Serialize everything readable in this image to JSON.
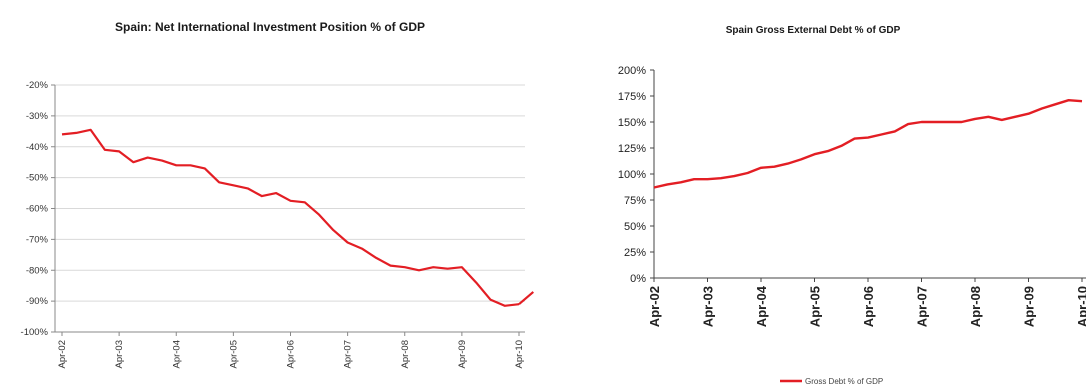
{
  "chart_data": [
    {
      "type": "line",
      "title": "Spain: Net International Investment Position % of GDP",
      "xlabel": "",
      "ylabel": "",
      "ylim": [
        -100,
        -20
      ],
      "yticks": [
        "-20%",
        "-30%",
        "-40%",
        "-50%",
        "-60%",
        "-70%",
        "-80%",
        "-90%",
        "-100%"
      ],
      "xticks": [
        "Apr-02",
        "Apr-03",
        "Apr-04",
        "Apr-05",
        "Apr-06",
        "Apr-07",
        "Apr-08",
        "Apr-09",
        "Apr-10"
      ],
      "grid": true,
      "color": "#e31e24",
      "series": [
        {
          "x": [
            2002.25,
            2002.5,
            2002.75,
            2003.0,
            2003.25,
            2003.5,
            2003.75,
            2004.0,
            2004.25,
            2004.5,
            2004.75,
            2005.0,
            2005.25,
            2005.5,
            2005.75,
            2006.0,
            2006.25,
            2006.5,
            2006.75,
            2007.0,
            2007.25,
            2007.5,
            2007.75,
            2008.0,
            2008.25,
            2008.5,
            2008.75,
            2009.0,
            2009.25,
            2009.5,
            2009.75,
            2010.0,
            2010.25
          ],
          "values": [
            -36,
            -35.5,
            -34.5,
            -41,
            -41.5,
            -45,
            -43.5,
            -44.5,
            -46,
            -46,
            -47,
            -51.5,
            -52.5,
            -53.5,
            -56,
            -55,
            -57.5,
            -58,
            -62,
            -67,
            -71,
            -73,
            -76,
            -78.5,
            -79,
            -80,
            -79,
            -79.5,
            -79,
            -84,
            -89.5,
            -91.5,
            -91
          ]
        },
        {
          "x": [
            2010.25,
            2010.5
          ],
          "values": [
            -91,
            -87
          ]
        }
      ]
    },
    {
      "type": "line",
      "title": "Spain Gross External Debt % of GDP",
      "xlabel": "",
      "ylabel": "",
      "ylim": [
        0,
        200
      ],
      "yticks": [
        "200%",
        "175%",
        "150%",
        "125%",
        "100%",
        "75%",
        "50%",
        "25%",
        "0%"
      ],
      "xticks": [
        "Apr-02",
        "Apr-03",
        "Apr-04",
        "Apr-05",
        "Apr-06",
        "Apr-07",
        "Apr-08",
        "Apr-09",
        "Apr-10"
      ],
      "grid": false,
      "legend": "bottom",
      "color": "#e31e24",
      "series": [
        {
          "name": "Gross Debt % of GDP",
          "x": [
            2002.25,
            2002.5,
            2002.75,
            2003.0,
            2003.25,
            2003.5,
            2003.75,
            2004.0,
            2004.25,
            2004.5,
            2004.75,
            2005.0,
            2005.25,
            2005.5,
            2005.75,
            2006.0,
            2006.25,
            2006.5,
            2006.75,
            2007.0,
            2007.25,
            2007.5,
            2007.75,
            2008.0,
            2008.25,
            2008.5,
            2008.75,
            2009.0,
            2009.25,
            2009.5,
            2009.75,
            2010.0,
            2010.25
          ],
          "values": [
            87,
            90,
            92,
            95,
            95,
            96,
            98,
            101,
            106,
            107,
            110,
            114,
            119,
            122,
            127,
            134,
            135,
            138,
            141,
            148,
            150,
            150,
            150,
            150,
            153,
            155,
            152,
            155,
            158,
            163,
            167,
            171,
            170
          ]
        }
      ]
    }
  ]
}
